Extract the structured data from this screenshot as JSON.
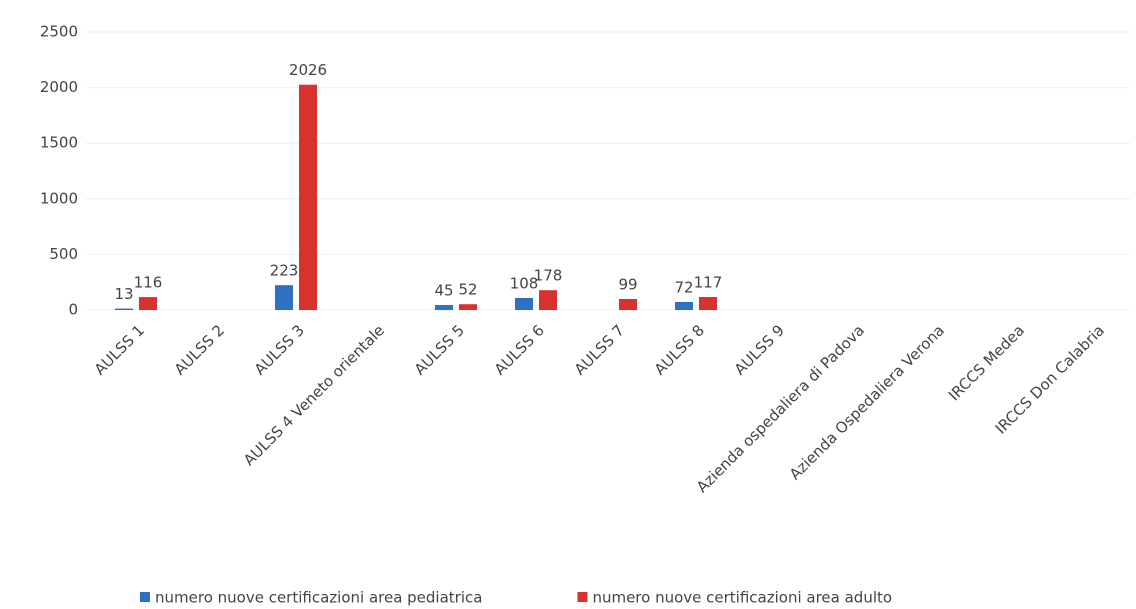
{
  "chart_data": {
    "type": "bar",
    "categories": [
      "AULSS 1",
      "AULSS 2",
      "AULSS 3",
      "AULSS 4 Veneto orientale",
      "AULSS 5",
      "AULSS 6",
      "AULSS 7",
      "AULSS 8",
      "AULSS 9",
      "Azienda ospedaliera di Padova",
      "Azienda Ospedaliera Verona",
      "IRCCS Medea",
      "IRCCS Don Calabria"
    ],
    "series": [
      {
        "name": "numero nuove certificazioni area pediatrica",
        "color": "#2f6fc4",
        "values": [
          13,
          null,
          223,
          null,
          45,
          108,
          null,
          72,
          null,
          null,
          null,
          null,
          null
        ]
      },
      {
        "name": "numero nuove certificazioni area adulto",
        "color": "#d9322e",
        "values": [
          116,
          null,
          2026,
          null,
          52,
          178,
          99,
          117,
          null,
          null,
          null,
          null,
          null
        ]
      }
    ],
    "ylim": [
      0,
      2500
    ],
    "yticks": [
      0,
      500,
      1000,
      1500,
      2000,
      2500
    ],
    "grid": true,
    "legend": "bottom"
  }
}
